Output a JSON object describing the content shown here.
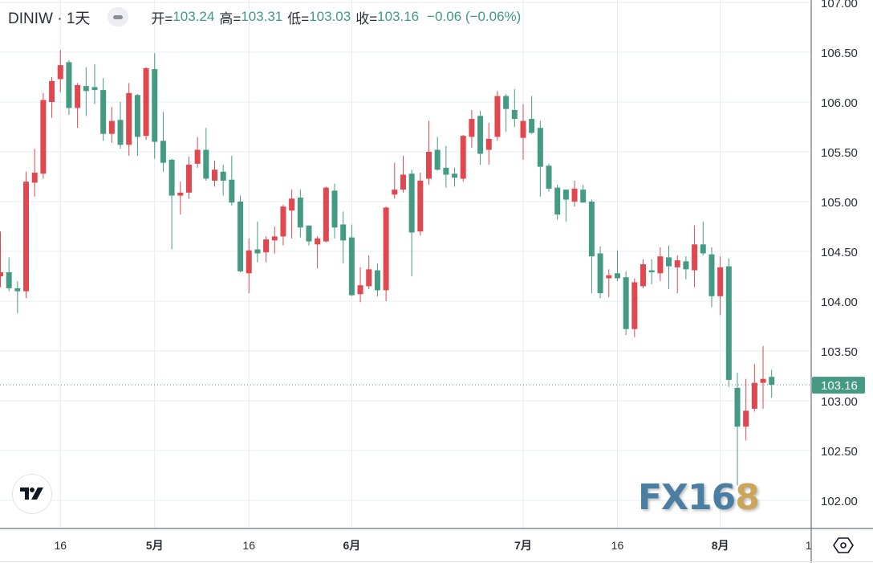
{
  "legend": {
    "symbol": "DINIW · 1天",
    "open_label": "开=",
    "open": "103.24",
    "high_label": "高=",
    "high": "103.31",
    "low_label": "低=",
    "low": "103.03",
    "close_label": "收=",
    "close": "103.16",
    "change": "−0.06 (−0.06%)"
  },
  "watermark": {
    "text_main": "FX16",
    "text_gold": "8"
  },
  "colors": {
    "up": "#e0474f",
    "down": "#459a84",
    "grid": "#e6ecf2",
    "axis": "#4a5068",
    "last_price_bg": "#459a84"
  },
  "chart_data": {
    "type": "candlestick",
    "title": "DINIW · 1天",
    "convention": "red = up, green = down",
    "ylim": [
      101.7,
      107.0
    ],
    "y_ticks": [
      "107.00",
      "106.50",
      "106.00",
      "105.50",
      "105.00",
      "104.50",
      "104.00",
      "103.50",
      "103.00",
      "102.50",
      "102.00"
    ],
    "x_ticks": [
      {
        "label": "16",
        "index": 7,
        "bold": false
      },
      {
        "label": "5月",
        "index": 18,
        "bold": true
      },
      {
        "label": "16",
        "index": 29,
        "bold": false
      },
      {
        "label": "6月",
        "index": 41,
        "bold": true
      },
      {
        "label": "7月",
        "index": 61,
        "bold": true
      },
      {
        "label": "16",
        "index": 72,
        "bold": false
      },
      {
        "label": "8月",
        "index": 84,
        "bold": true
      },
      {
        "label": "1",
        "index": 94.3,
        "bold": false
      }
    ],
    "last_price": "103.16",
    "ohlc": [
      [
        104.25,
        104.7,
        104.14,
        104.29
      ],
      [
        104.29,
        104.44,
        104.1,
        104.13
      ],
      [
        104.13,
        104.2,
        103.88,
        104.1
      ],
      [
        104.1,
        105.3,
        104.03,
        105.2
      ],
      [
        105.19,
        105.53,
        105.05,
        105.29
      ],
      [
        105.28,
        106.09,
        105.23,
        106.02
      ],
      [
        106.0,
        106.25,
        105.84,
        106.21
      ],
      [
        106.23,
        106.52,
        106.1,
        106.37
      ],
      [
        106.4,
        106.42,
        105.87,
        105.94
      ],
      [
        105.94,
        106.19,
        105.74,
        106.17
      ],
      [
        106.16,
        106.35,
        105.86,
        106.11
      ],
      [
        106.15,
        106.38,
        105.98,
        106.12
      ],
      [
        106.12,
        106.24,
        105.61,
        105.68
      ],
      [
        105.68,
        105.95,
        105.59,
        105.81
      ],
      [
        105.82,
        106.0,
        105.53,
        105.57
      ],
      [
        105.57,
        106.19,
        105.46,
        106.09
      ],
      [
        106.07,
        106.08,
        105.46,
        105.65
      ],
      [
        105.66,
        106.35,
        105.62,
        106.34
      ],
      [
        106.33,
        106.49,
        105.43,
        105.6
      ],
      [
        105.61,
        105.9,
        105.3,
        105.39
      ],
      [
        105.42,
        105.43,
        104.52,
        105.06
      ],
      [
        105.06,
        105.2,
        104.87,
        105.09
      ],
      [
        105.09,
        105.45,
        105.03,
        105.37
      ],
      [
        105.38,
        105.65,
        105.34,
        105.52
      ],
      [
        105.52,
        105.74,
        105.21,
        105.23
      ],
      [
        105.21,
        105.41,
        105.15,
        105.32
      ],
      [
        105.3,
        105.37,
        105.06,
        105.21
      ],
      [
        105.22,
        105.46,
        104.96,
        104.99
      ],
      [
        105.0,
        105.06,
        104.29,
        104.3
      ],
      [
        104.28,
        104.63,
        104.08,
        104.51
      ],
      [
        104.52,
        104.8,
        104.39,
        104.48
      ],
      [
        104.49,
        104.65,
        104.39,
        104.62
      ],
      [
        104.61,
        104.75,
        104.48,
        104.65
      ],
      [
        104.65,
        104.97,
        104.56,
        104.95
      ],
      [
        104.91,
        105.12,
        104.63,
        105.03
      ],
      [
        105.04,
        105.12,
        104.64,
        104.74
      ],
      [
        104.76,
        104.76,
        104.56,
        104.6
      ],
      [
        104.57,
        104.65,
        104.33,
        104.63
      ],
      [
        104.6,
        105.15,
        104.59,
        105.14
      ],
      [
        105.11,
        105.18,
        104.63,
        104.74
      ],
      [
        104.77,
        104.9,
        104.38,
        104.61
      ],
      [
        104.64,
        104.77,
        104.05,
        104.06
      ],
      [
        104.07,
        104.34,
        103.99,
        104.16
      ],
      [
        104.15,
        104.46,
        104.12,
        104.32
      ],
      [
        104.31,
        104.38,
        104.05,
        104.11
      ],
      [
        104.11,
        104.95,
        104.0,
        104.94
      ],
      [
        105.07,
        105.39,
        105.03,
        105.12
      ],
      [
        105.12,
        105.46,
        105.09,
        105.27
      ],
      [
        105.28,
        105.32,
        104.25,
        104.69
      ],
      [
        104.7,
        105.29,
        104.66,
        105.21
      ],
      [
        105.23,
        105.81,
        105.17,
        105.5
      ],
      [
        105.52,
        105.65,
        105.31,
        105.32
      ],
      [
        105.34,
        105.56,
        105.14,
        105.27
      ],
      [
        105.28,
        105.34,
        105.15,
        105.24
      ],
      [
        105.23,
        105.67,
        105.2,
        105.66
      ],
      [
        105.65,
        105.92,
        105.54,
        105.83
      ],
      [
        105.86,
        105.91,
        105.37,
        105.48
      ],
      [
        105.52,
        105.79,
        105.37,
        105.63
      ],
      [
        105.65,
        106.11,
        105.61,
        106.06
      ],
      [
        106.06,
        106.08,
        105.7,
        105.93
      ],
      [
        105.92,
        106.13,
        105.75,
        105.83
      ],
      [
        105.64,
        105.98,
        105.42,
        105.81
      ],
      [
        105.83,
        106.06,
        105.68,
        105.69
      ],
      [
        105.74,
        105.81,
        105.05,
        105.35
      ],
      [
        105.36,
        105.38,
        105.1,
        105.13
      ],
      [
        105.14,
        105.17,
        104.82,
        104.87
      ],
      [
        105.12,
        105.12,
        104.8,
        105.02
      ],
      [
        105.0,
        105.21,
        104.95,
        105.13
      ],
      [
        105.12,
        105.17,
        104.99,
        104.99
      ],
      [
        105.0,
        105.02,
        104.08,
        104.45
      ],
      [
        104.48,
        104.55,
        104.03,
        104.08
      ],
      [
        104.23,
        104.32,
        104.04,
        104.26
      ],
      [
        104.28,
        104.51,
        104.2,
        104.23
      ],
      [
        104.24,
        104.3,
        103.66,
        103.72
      ],
      [
        103.72,
        104.23,
        103.64,
        104.19
      ],
      [
        104.15,
        104.42,
        104.13,
        104.37
      ],
      [
        104.31,
        104.42,
        104.17,
        104.29
      ],
      [
        104.28,
        104.54,
        104.2,
        104.45
      ],
      [
        104.44,
        104.56,
        104.12,
        104.35
      ],
      [
        104.34,
        104.46,
        104.08,
        104.41
      ],
      [
        104.4,
        104.45,
        104.22,
        104.32
      ],
      [
        104.31,
        104.76,
        104.14,
        104.57
      ],
      [
        104.57,
        104.8,
        104.46,
        104.48
      ],
      [
        104.47,
        104.54,
        103.94,
        104.05
      ],
      [
        104.05,
        104.45,
        103.86,
        104.34
      ],
      [
        104.35,
        104.43,
        103.14,
        103.21
      ],
      [
        103.13,
        103.28,
        102.15,
        102.74
      ],
      [
        102.74,
        103.22,
        102.6,
        102.9
      ],
      [
        102.92,
        103.37,
        102.89,
        103.18
      ],
      [
        103.18,
        103.55,
        102.92,
        103.22
      ],
      [
        103.24,
        103.31,
        103.03,
        103.16
      ]
    ]
  }
}
